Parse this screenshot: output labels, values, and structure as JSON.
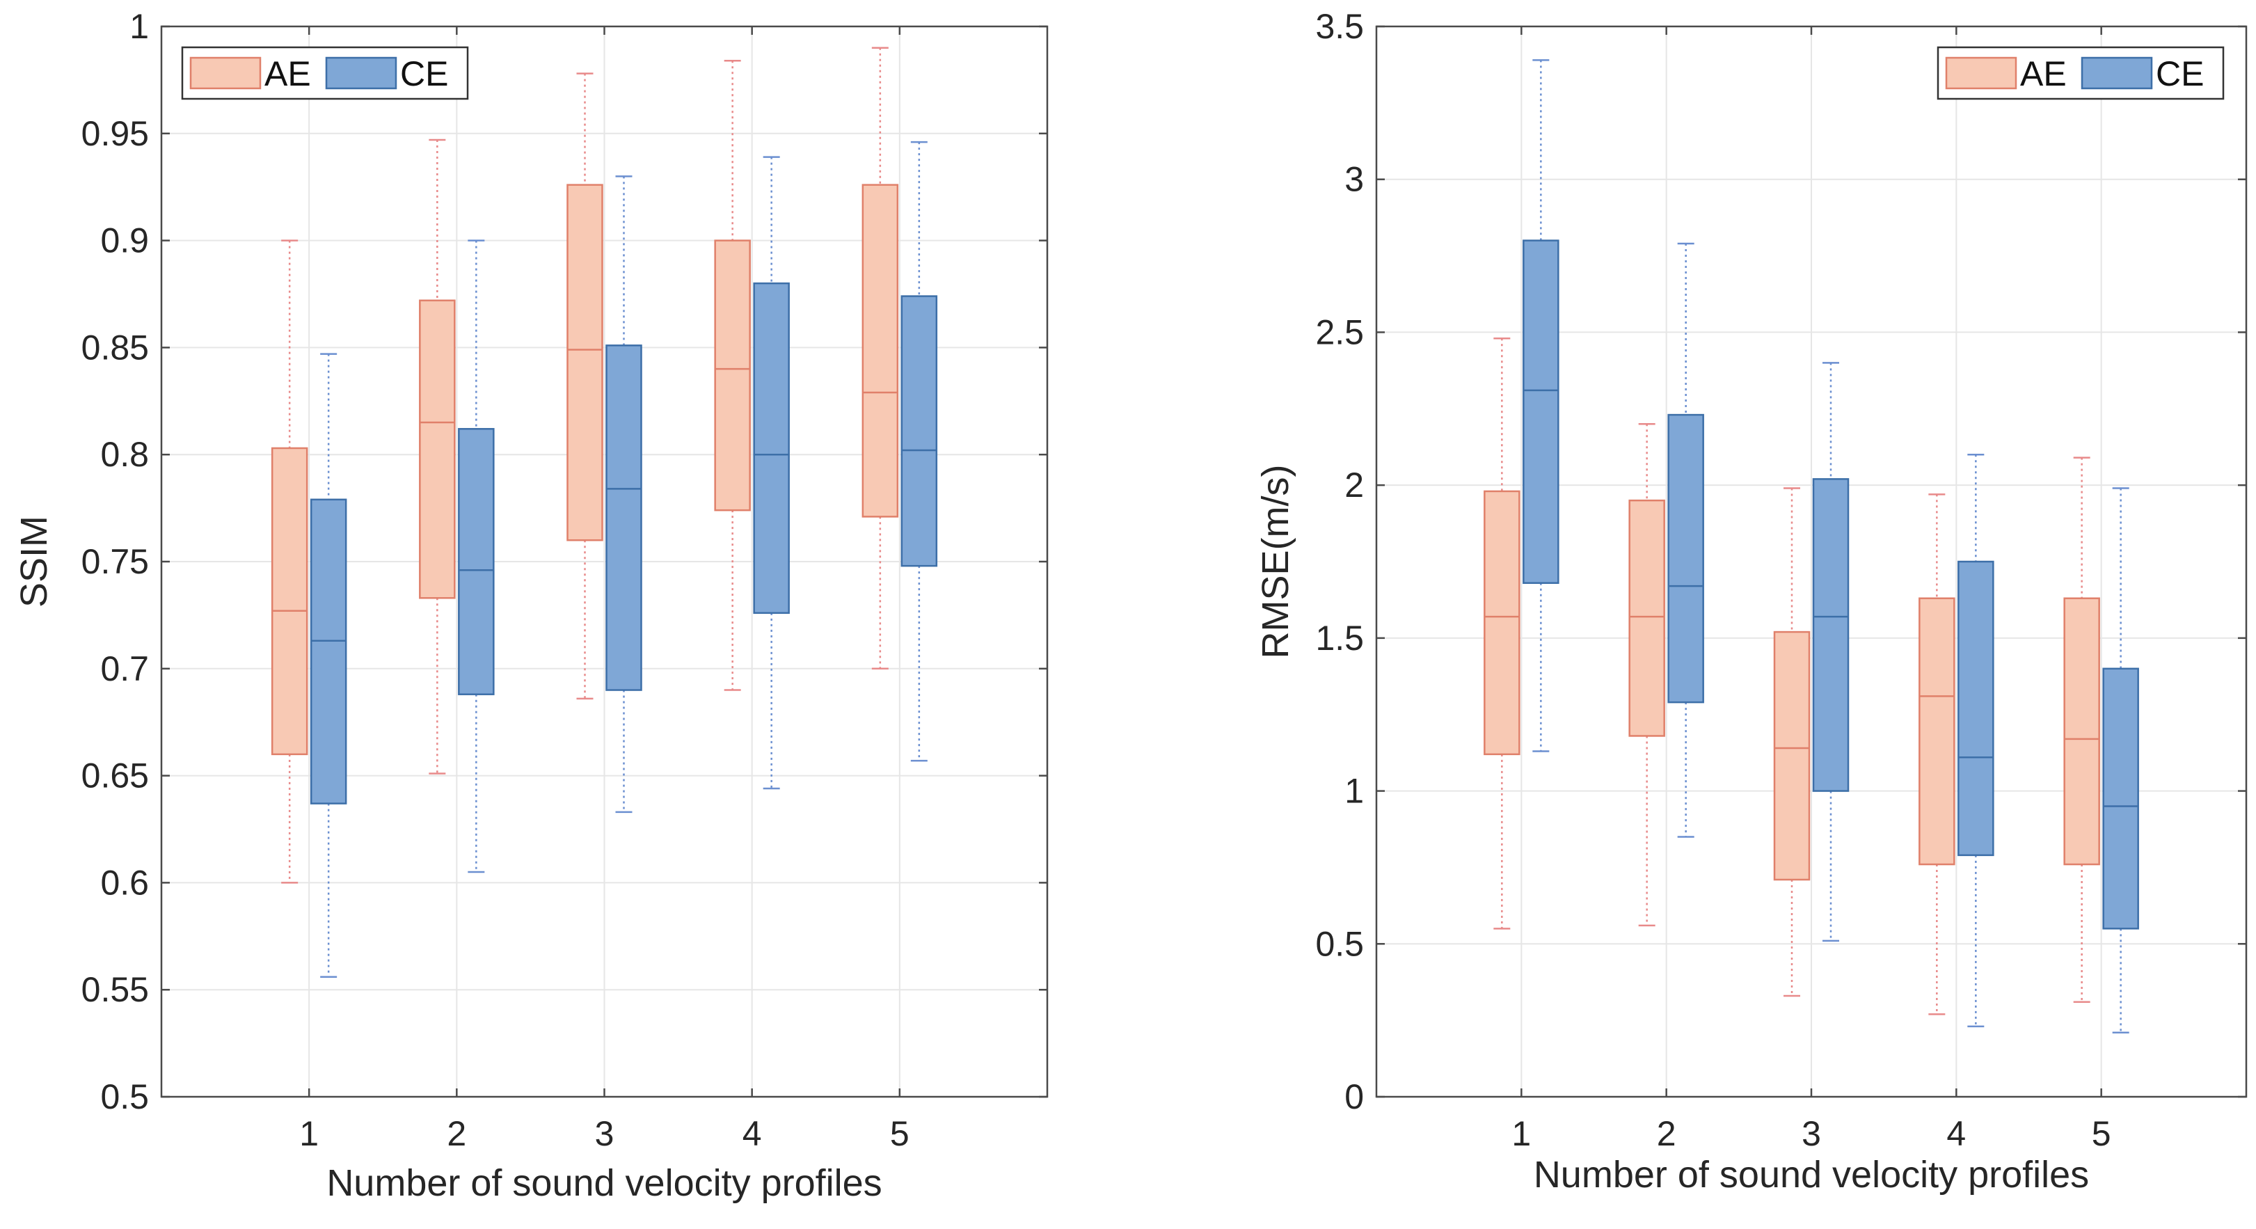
{
  "colors": {
    "AE_fill": "#f8c9b4",
    "AE_stroke": "#e0806a",
    "AE_whisker": "#e88a8a",
    "CE_fill": "#7fa7d6",
    "CE_stroke": "#3d6fa8",
    "CE_whisker": "#6b8fd0",
    "axis": "#4a4a4a",
    "grid": "#e6e6e6"
  },
  "chart_data": [
    {
      "type": "box",
      "title": "",
      "xlabel": "Number of sound velocity profiles",
      "ylabel": "SSIM",
      "categories": [
        "1",
        "2",
        "3",
        "4",
        "5"
      ],
      "ylim": [
        0.5,
        1
      ],
      "yticks": [
        "0.5",
        "0.55",
        "0.6",
        "0.65",
        "0.7",
        "0.75",
        "0.8",
        "0.85",
        "0.9",
        "0.95",
        "1"
      ],
      "grid": true,
      "legend": [
        "AE",
        "CE"
      ],
      "legend_location": "top-left",
      "series": [
        {
          "name": "AE",
          "boxes": [
            {
              "min": 0.6,
              "q1": 0.66,
              "median": 0.727,
              "q3": 0.803,
              "max": 0.9
            },
            {
              "min": 0.651,
              "q1": 0.733,
              "median": 0.815,
              "q3": 0.872,
              "max": 0.947
            },
            {
              "min": 0.686,
              "q1": 0.76,
              "median": 0.849,
              "q3": 0.926,
              "max": 0.978
            },
            {
              "min": 0.69,
              "q1": 0.774,
              "median": 0.84,
              "q3": 0.9,
              "max": 0.984
            },
            {
              "min": 0.7,
              "q1": 0.771,
              "median": 0.829,
              "q3": 0.926,
              "max": 0.99
            }
          ]
        },
        {
          "name": "CE",
          "boxes": [
            {
              "min": 0.556,
              "q1": 0.637,
              "median": 0.713,
              "q3": 0.779,
              "max": 0.847
            },
            {
              "min": 0.605,
              "q1": 0.688,
              "median": 0.746,
              "q3": 0.812,
              "max": 0.9
            },
            {
              "min": 0.633,
              "q1": 0.69,
              "median": 0.784,
              "q3": 0.851,
              "max": 0.93
            },
            {
              "min": 0.644,
              "q1": 0.726,
              "median": 0.8,
              "q3": 0.88,
              "max": 0.939
            },
            {
              "min": 0.657,
              "q1": 0.748,
              "median": 0.802,
              "q3": 0.874,
              "max": 0.946
            }
          ]
        }
      ]
    },
    {
      "type": "box",
      "title": "",
      "xlabel": "Number of sound velocity profiles",
      "ylabel": "RMSE(m/s)",
      "categories": [
        "1",
        "2",
        "3",
        "4",
        "5"
      ],
      "ylim": [
        0,
        3.5
      ],
      "yticks": [
        "0",
        "0.5",
        "1",
        "1.5",
        "2",
        "2.5",
        "3",
        "3.5"
      ],
      "grid": true,
      "legend": [
        "AE",
        "CE"
      ],
      "legend_location": "top-right",
      "series": [
        {
          "name": "AE",
          "boxes": [
            {
              "min": 0.55,
              "q1": 1.12,
              "median": 1.57,
              "q3": 1.98,
              "max": 2.48
            },
            {
              "min": 0.56,
              "q1": 1.18,
              "median": 1.57,
              "q3": 1.95,
              "max": 2.2
            },
            {
              "min": 0.33,
              "q1": 0.71,
              "median": 1.14,
              "q3": 1.52,
              "max": 1.99
            },
            {
              "min": 0.27,
              "q1": 0.76,
              "median": 1.31,
              "q3": 1.63,
              "max": 1.97
            },
            {
              "min": 0.31,
              "q1": 0.76,
              "median": 1.17,
              "q3": 1.63,
              "max": 2.09
            }
          ]
        },
        {
          "name": "CE",
          "boxes": [
            {
              "min": 1.13,
              "q1": 1.68,
              "median": 2.31,
              "q3": 2.8,
              "max": 3.39
            },
            {
              "min": 0.85,
              "q1": 1.29,
              "median": 1.67,
              "q3": 2.23,
              "max": 2.79
            },
            {
              "min": 0.51,
              "q1": 1.0,
              "median": 1.57,
              "q3": 2.02,
              "max": 2.4
            },
            {
              "min": 0.23,
              "q1": 0.79,
              "median": 1.11,
              "q3": 1.75,
              "max": 2.1
            },
            {
              "min": 0.21,
              "q1": 0.55,
              "median": 0.95,
              "q3": 1.4,
              "max": 1.99
            }
          ]
        }
      ]
    }
  ]
}
